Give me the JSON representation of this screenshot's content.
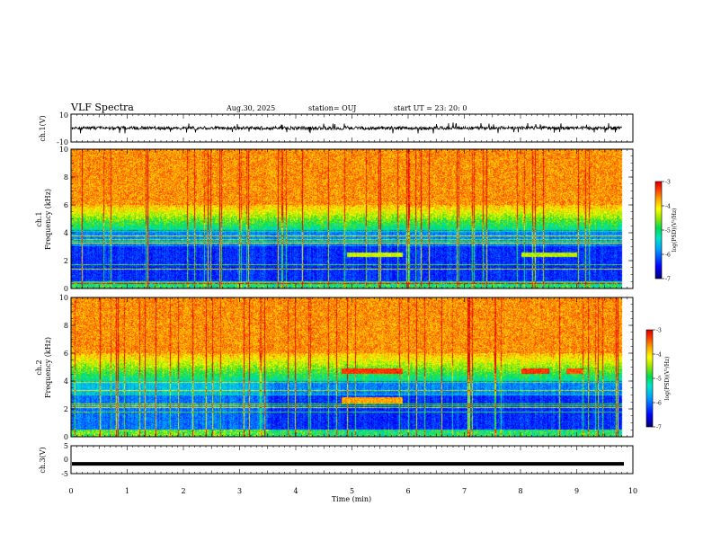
{
  "header": {
    "title": "VLF Spectra",
    "date": "Aug.30, 2025",
    "station": "station= OUJ",
    "start": "start  UT  =   23: 20: 0"
  },
  "chart_data": [
    {
      "type": "line",
      "panel": "ch1-waveform",
      "ylabel": "ch.1(V)",
      "ylim": [
        -10,
        10
      ],
      "yticks": [
        "10",
        "-10"
      ],
      "xlim": [
        0,
        10
      ],
      "series": [
        {
          "baseline": 0,
          "typical_amplitude": 1.2,
          "spike_amplitude": 4
        }
      ]
    },
    {
      "type": "heatmap",
      "panel": "ch1-spectrogram",
      "ylabel_line1": "ch.1",
      "ylabel_line2": "Frequency (kHz)",
      "ylim": [
        0,
        10
      ],
      "yticks": [
        "0",
        "2",
        "4",
        "6",
        "8",
        "10"
      ],
      "xlim": [
        0,
        10
      ],
      "data_end": 9.8,
      "colorbar": {
        "label": "log(PSD)(V²/Hz)",
        "range": [
          -7,
          -3
        ],
        "ticks": [
          "-3",
          "-4",
          "-5",
          "-6",
          "-7"
        ]
      },
      "structure": {
        "low_level_band_khz": [
          0.5,
          4.2
        ],
        "transition_khz": [
          4.2,
          6
        ],
        "high_level_band_khz": [
          6,
          10
        ]
      }
    },
    {
      "type": "heatmap",
      "panel": "ch2-spectrogram",
      "ylabel_line1": "ch.2",
      "ylabel_line2": "Frequency (kHz)",
      "ylim": [
        0,
        10
      ],
      "yticks": [
        "0",
        "2",
        "4",
        "6",
        "8",
        "10"
      ],
      "xlim": [
        0,
        10
      ],
      "data_end": 9.8,
      "colorbar": {
        "label": "log(PSD)(V²/Hz)",
        "range": [
          -7,
          -3
        ],
        "ticks": [
          "-3",
          "-4",
          "-5",
          "-6",
          "-7"
        ]
      },
      "structure": {
        "low_level_band_khz": [
          0.5,
          4.0
        ],
        "transition_khz": [
          4.0,
          6
        ],
        "high_level_band_khz": [
          6,
          10
        ]
      }
    },
    {
      "type": "line",
      "panel": "ch3-waveform",
      "ylabel": "ch.3(V)",
      "ylim": [
        -5,
        5
      ],
      "yticks": [
        "5",
        "0",
        "-5"
      ],
      "xlim": [
        0,
        10
      ],
      "xlabel": "Time (min)",
      "xticks": [
        "0",
        "1",
        "2",
        "3",
        "4",
        "5",
        "6",
        "7",
        "8",
        "9",
        "10"
      ],
      "series": [
        {
          "value": -1.5
        }
      ]
    }
  ]
}
